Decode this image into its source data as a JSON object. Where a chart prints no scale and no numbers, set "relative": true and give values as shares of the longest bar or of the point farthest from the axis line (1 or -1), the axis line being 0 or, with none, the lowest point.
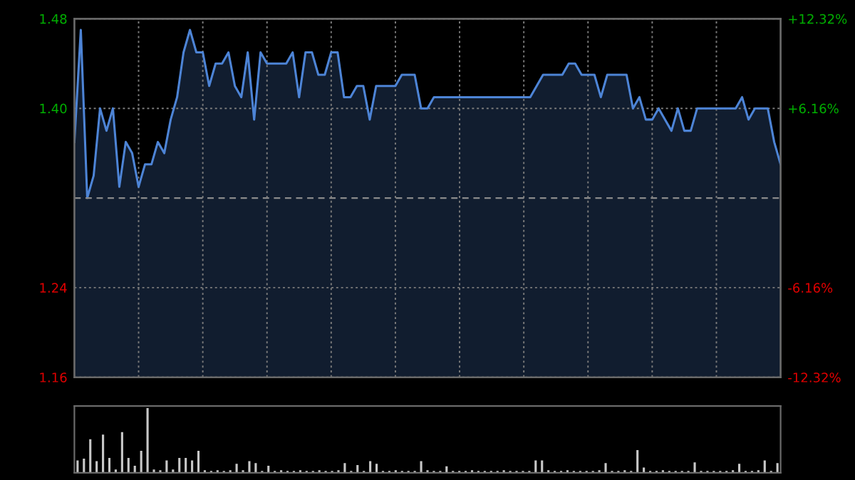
{
  "chart_data": [
    {
      "type": "area",
      "categories": [
        null,
        null,
        null,
        null,
        null,
        null,
        null,
        null,
        null,
        null,
        null,
        null,
        null,
        null,
        null,
        null,
        null,
        null,
        null,
        null,
        null,
        null,
        null,
        null,
        null,
        null,
        null,
        null,
        null,
        null,
        null,
        null,
        null,
        null,
        null,
        null,
        null,
        null,
        null,
        null,
        null,
        null,
        null,
        null,
        null,
        null,
        null,
        null,
        null,
        null,
        null,
        null,
        null,
        null,
        null,
        null,
        null,
        null,
        null,
        null,
        null,
        null,
        null,
        null,
        null,
        null,
        null,
        null,
        null,
        null,
        null,
        null,
        null,
        null,
        null,
        null,
        null,
        null,
        null,
        null,
        null,
        null,
        null,
        null,
        null,
        null,
        null,
        null,
        null,
        null,
        null,
        null,
        null,
        null,
        null,
        null,
        null,
        null,
        null,
        null,
        null,
        null,
        null,
        null,
        null,
        null,
        null,
        null,
        null,
        null,
        null
      ],
      "series": [
        {
          "color": "#4d84d6",
          "values": [
            1.37,
            1.47,
            1.32,
            1.34,
            1.4,
            1.38,
            1.4,
            1.33,
            1.37,
            1.36,
            1.33,
            1.35,
            1.35,
            1.37,
            1.36,
            1.39,
            1.41,
            1.45,
            1.47,
            1.45,
            1.45,
            1.42,
            1.44,
            1.44,
            1.45,
            1.42,
            1.41,
            1.45,
            1.39,
            1.45,
            1.44,
            1.44,
            1.44,
            1.44,
            1.45,
            1.41,
            1.45,
            1.45,
            1.43,
            1.43,
            1.45,
            1.45,
            1.41,
            1.41,
            1.42,
            1.42,
            1.39,
            1.42,
            1.42,
            1.42,
            1.42,
            1.43,
            1.43,
            1.43,
            1.4,
            1.4,
            1.41,
            1.41,
            1.41,
            1.41,
            1.41,
            1.41,
            1.41,
            1.41,
            1.41,
            1.41,
            1.41,
            1.41,
            1.41,
            1.41,
            1.41,
            1.41,
            1.42,
            1.43,
            1.43,
            1.43,
            1.43,
            1.44,
            1.44,
            1.43,
            1.43,
            1.43,
            1.41,
            1.43,
            1.43,
            1.43,
            1.43,
            1.4,
            1.41,
            1.39,
            1.39,
            1.4,
            1.39,
            1.38,
            1.4,
            1.38,
            1.38,
            1.4,
            1.4,
            1.4,
            1.4,
            1.4,
            1.4,
            1.4,
            1.41,
            1.39,
            1.4,
            1.4,
            1.4,
            1.37,
            1.35
          ]
        }
      ],
      "ylim": [
        1.16,
        1.48
      ],
      "yticks": [
        {
          "value": 1.48,
          "label": "1.48"
        },
        {
          "value": 1.4,
          "label": "1.40"
        },
        {
          "value": 1.24,
          "label": "1.24"
        },
        {
          "value": 1.16,
          "label": "1.16"
        }
      ],
      "y2lim": [
        -12.32,
        12.32
      ],
      "y2ticks": [
        {
          "value": 12.32,
          "label": "+12.32%"
        },
        {
          "value": 6.16,
          "label": "+6.16%"
        },
        {
          "value": -6.16,
          "label": "-6.16%"
        },
        {
          "value": -12.32,
          "label": "-12.32%"
        }
      ],
      "ref_lines": [
        {
          "axis": "y2",
          "value": 0,
          "color": "#8a8a8a",
          "line_style": "dashed"
        }
      ],
      "grid": true,
      "tick_labels": "y",
      "legend": false
    },
    {
      "type": "bar",
      "relative": true,
      "tick_labels": false,
      "categories": [
        null,
        null,
        null,
        null,
        null,
        null,
        null,
        null,
        null,
        null,
        null,
        null,
        null,
        null,
        null,
        null,
        null,
        null,
        null,
        null,
        null,
        null,
        null,
        null,
        null,
        null,
        null,
        null,
        null,
        null,
        null,
        null,
        null,
        null,
        null,
        null,
        null,
        null,
        null,
        null,
        null,
        null,
        null,
        null,
        null,
        null,
        null,
        null,
        null,
        null,
        null,
        null,
        null,
        null,
        null,
        null,
        null,
        null,
        null,
        null,
        null,
        null,
        null,
        null,
        null,
        null,
        null,
        null,
        null,
        null,
        null,
        null,
        null,
        null,
        null,
        null,
        null,
        null,
        null,
        null,
        null,
        null,
        null,
        null,
        null,
        null,
        null,
        null,
        null,
        null,
        null,
        null,
        null,
        null,
        null,
        null,
        null,
        null,
        null,
        null,
        null,
        null,
        null,
        null,
        null,
        null,
        null,
        null,
        null,
        null,
        null
      ],
      "series": [
        {
          "color": "#c8c8c8",
          "values": [
            0.19,
            0.22,
            0.52,
            0.18,
            0.59,
            0.23,
            0.05,
            0.63,
            0.23,
            0.11,
            0.34,
            1,
            0.05,
            0.04,
            0.19,
            0.05,
            0.23,
            0.23,
            0.19,
            0.34,
            0.04,
            0.03,
            0.04,
            0.03,
            0.04,
            0.14,
            0.04,
            0.18,
            0.15,
            0.03,
            0.11,
            0.03,
            0.04,
            0.03,
            0.03,
            0.04,
            0.03,
            0.03,
            0.04,
            0.03,
            0.03,
            0.04,
            0.15,
            0.03,
            0.12,
            0.03,
            0.18,
            0.14,
            0.03,
            0.03,
            0.04,
            0.03,
            0.03,
            0.03,
            0.18,
            0.04,
            0.03,
            0.03,
            0.1,
            0.03,
            0.03,
            0.03,
            0.04,
            0.03,
            0.03,
            0.03,
            0.03,
            0.04,
            0.03,
            0.03,
            0.03,
            0.03,
            0.19,
            0.19,
            0.04,
            0.03,
            0.03,
            0.04,
            0.03,
            0.03,
            0.03,
            0.03,
            0.04,
            0.15,
            0.03,
            0.03,
            0.04,
            0.03,
            0.35,
            0.08,
            0.03,
            0.03,
            0.04,
            0.03,
            0.03,
            0.03,
            0.03,
            0.16,
            0.03,
            0.03,
            0.03,
            0.03,
            0.03,
            0.04,
            0.14,
            0.03,
            0.03,
            0.04,
            0.19,
            0.03,
            0.15
          ]
        }
      ]
    }
  ]
}
